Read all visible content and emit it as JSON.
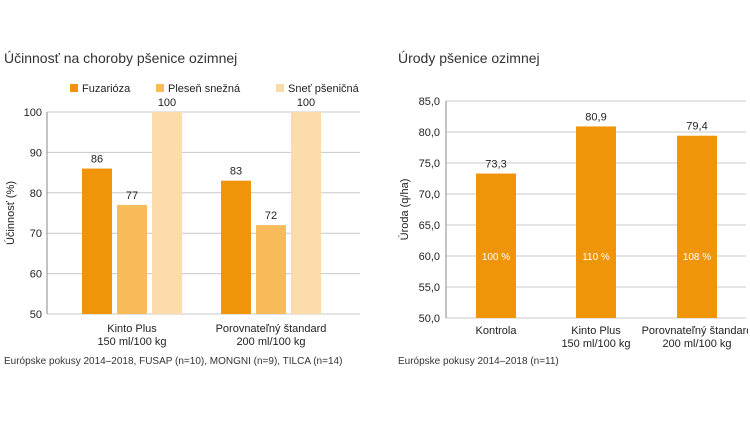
{
  "colors": {
    "fuzariozy": "#f0950a",
    "plesen": "#f7bb5a",
    "snet": "#fbdcaa",
    "axis": "#888888",
    "grid": "#c8c8c8"
  },
  "chart_data": [
    {
      "type": "bar",
      "title": "Účinnosť na choroby pšenice ozimnej",
      "ylabel": "Účinnosť (%)",
      "xlabel": "",
      "ylim": [
        50,
        100
      ],
      "yticks": [
        "50",
        "60",
        "70",
        "80",
        "90",
        "100"
      ],
      "categories": [
        [
          "Kinto Plus",
          "150 ml/100 kg"
        ],
        [
          "Porovnateľný štandard",
          "200 ml/100 kg"
        ]
      ],
      "series": [
        {
          "name": "Fuzarióza",
          "values": [
            86,
            83
          ],
          "labels": [
            "86",
            "83"
          ]
        },
        {
          "name": "Pleseň snežná",
          "values": [
            77,
            72
          ],
          "labels": [
            "77",
            "72"
          ]
        },
        {
          "name": "Sneť pšeničná",
          "values": [
            100,
            100
          ],
          "labels": [
            "100",
            "100"
          ]
        }
      ],
      "legend": "top",
      "grid": true,
      "footnote": "Európske pokusy 2014–2018, FUSAP (n=10), MONGNI (n=9), TILCA (n=14)"
    },
    {
      "type": "bar",
      "title": "Úrody pšenice ozimnej",
      "ylabel": "Úroda (q/ha)",
      "xlabel": "",
      "ylim": [
        50,
        85
      ],
      "yticks": [
        "50,0",
        "55,0",
        "60,0",
        "65,0",
        "70,0",
        "75,0",
        "80,0",
        "85,0"
      ],
      "categories": [
        [
          "Kontrola"
        ],
        [
          "Kinto Plus",
          "150 ml/100 kg"
        ],
        [
          "Porovnateľný štandard",
          "200 ml/100 kg"
        ]
      ],
      "values": [
        73.3,
        80.9,
        79.4
      ],
      "labels": [
        "73,3",
        "80,9",
        "79,4"
      ],
      "inner_labels": [
        "100 %",
        "110 %",
        "108 %"
      ],
      "grid": true,
      "footnote": "Európske pokusy 2014–2018 (n=11)"
    }
  ]
}
